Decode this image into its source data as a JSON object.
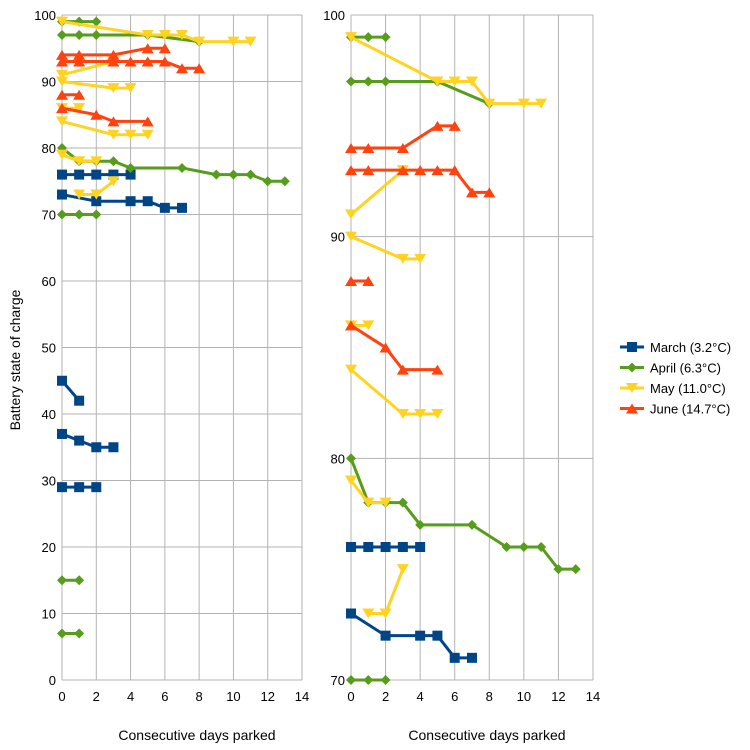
{
  "chart_data": {
    "type": "line",
    "ylabel": "Battery state of charge",
    "legend_position": "right",
    "series_styles": [
      {
        "name": "March (3.2°C)",
        "color": "#004586",
        "marker": "square"
      },
      {
        "name": "April (6.3°C)",
        "color": "#579d1c",
        "marker": "diamond"
      },
      {
        "name": "May (11.0°C)",
        "color": "#ffd320",
        "marker": "triangle-down"
      },
      {
        "name": "June (14.7°C)",
        "color": "#ff420e",
        "marker": "triangle-up"
      }
    ],
    "panels": [
      {
        "xlabel": "Consecutive days parked",
        "xlim": [
          0,
          14
        ],
        "ylim": [
          0,
          100
        ],
        "xticks": [
          0,
          2,
          4,
          6,
          8,
          10,
          12,
          14
        ],
        "yticks": [
          0,
          10,
          20,
          30,
          40,
          50,
          60,
          70,
          80,
          90,
          100
        ],
        "grid": true
      },
      {
        "xlabel": "Consecutive days parked",
        "xlim": [
          0,
          14
        ],
        "ylim": [
          70,
          100
        ],
        "xticks": [
          0,
          2,
          4,
          6,
          8,
          10,
          12,
          14
        ],
        "yticks": [
          70,
          80,
          90,
          100
        ],
        "grid": true
      }
    ],
    "series": [
      {
        "name": "March (3.2°C)",
        "segments": [
          [
            [
              0,
              76
            ],
            [
              1,
              76
            ],
            [
              2,
              76
            ],
            [
              3,
              76
            ],
            [
              4,
              76
            ]
          ],
          [
            [
              0,
              73
            ],
            [
              2,
              72
            ],
            [
              4,
              72
            ],
            [
              5,
              72
            ],
            [
              6,
              71
            ],
            [
              7,
              71
            ]
          ],
          [
            [
              0,
              45
            ],
            [
              1,
              42
            ]
          ],
          [
            [
              0,
              37
            ],
            [
              1,
              36
            ],
            [
              2,
              35
            ],
            [
              3,
              35
            ]
          ],
          [
            [
              0,
              29
            ],
            [
              1,
              29
            ],
            [
              2,
              29
            ]
          ]
        ]
      },
      {
        "name": "April (6.3°C)",
        "segments": [
          [
            [
              0,
              99
            ],
            [
              1,
              99
            ],
            [
              2,
              99
            ]
          ],
          [
            [
              0,
              97
            ],
            [
              1,
              97
            ],
            [
              2,
              97
            ],
            [
              5,
              97
            ],
            [
              8,
              96
            ]
          ],
          [
            [
              0,
              80
            ],
            [
              1,
              78
            ],
            [
              2,
              78
            ],
            [
              3,
              78
            ],
            [
              4,
              77
            ],
            [
              7,
              77
            ],
            [
              9,
              76
            ],
            [
              10,
              76
            ],
            [
              11,
              76
            ],
            [
              12,
              75
            ],
            [
              13,
              75
            ]
          ],
          [
            [
              0,
              70
            ],
            [
              1,
              70
            ],
            [
              2,
              70
            ]
          ],
          [
            [
              0,
              15
            ],
            [
              1,
              15
            ]
          ],
          [
            [
              0,
              7
            ],
            [
              1,
              7
            ]
          ]
        ]
      },
      {
        "name": "May (11.0°C)",
        "segments": [
          [
            [
              0,
              99
            ],
            [
              5,
              97
            ],
            [
              6,
              97
            ],
            [
              7,
              97
            ],
            [
              8,
              96
            ],
            [
              10,
              96
            ],
            [
              11,
              96
            ]
          ],
          [
            [
              0,
              91
            ],
            [
              3,
              93
            ]
          ],
          [
            [
              0,
              90
            ],
            [
              3,
              89
            ],
            [
              4,
              89
            ]
          ],
          [
            [
              0,
              86
            ],
            [
              1,
              86
            ]
          ],
          [
            [
              0,
              84
            ],
            [
              3,
              82
            ],
            [
              4,
              82
            ],
            [
              5,
              82
            ]
          ],
          [
            [
              0,
              79
            ],
            [
              1,
              78
            ],
            [
              2,
              78
            ]
          ],
          [
            [
              1,
              73
            ],
            [
              2,
              73
            ],
            [
              3,
              75
            ]
          ]
        ]
      },
      {
        "name": "June (14.7°C)",
        "segments": [
          [
            [
              0,
              94
            ],
            [
              1,
              94
            ],
            [
              3,
              94
            ],
            [
              5,
              95
            ],
            [
              6,
              95
            ]
          ],
          [
            [
              0,
              93
            ],
            [
              1,
              93
            ],
            [
              3,
              93
            ],
            [
              4,
              93
            ],
            [
              5,
              93
            ],
            [
              6,
              93
            ],
            [
              7,
              92
            ],
            [
              8,
              92
            ]
          ],
          [
            [
              0,
              88
            ],
            [
              1,
              88
            ]
          ],
          [
            [
              0,
              86
            ],
            [
              2,
              85
            ],
            [
              3,
              84
            ],
            [
              5,
              84
            ]
          ]
        ]
      }
    ]
  }
}
